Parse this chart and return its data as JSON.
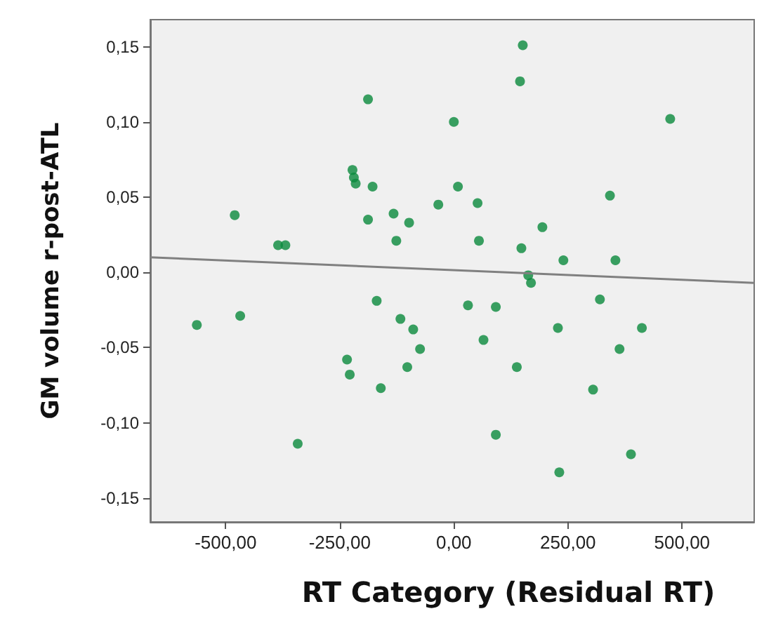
{
  "chart_data": {
    "type": "scatter",
    "xlabel": "RT Category (Residual RT)",
    "ylabel": "GM volume r-post-ATL",
    "xlim": [
      -665,
      658
    ],
    "ylim": [
      -0.166,
      0.168
    ],
    "xticks": [
      {
        "value": -500,
        "label": "-500,00"
      },
      {
        "value": -250,
        "label": "-250,00"
      },
      {
        "value": 0,
        "label": "0,00"
      },
      {
        "value": 250,
        "label": "250,00"
      },
      {
        "value": 500,
        "label": "500,00"
      }
    ],
    "yticks": [
      {
        "value": -0.15,
        "label": "-0,15"
      },
      {
        "value": -0.1,
        "label": "-0,10"
      },
      {
        "value": -0.05,
        "label": "-0,05"
      },
      {
        "value": 0,
        "label": "0,00"
      },
      {
        "value": 0.05,
        "label": "0,05"
      },
      {
        "value": 0.1,
        "label": "0,10"
      },
      {
        "value": 0.15,
        "label": "0,15"
      }
    ],
    "grid": false,
    "marker": "circle",
    "series": [
      {
        "color": "#0a8a3c",
        "x": [
          151,
          145,
          474,
          0,
          9,
          -34,
          52,
          342,
          194,
          55,
          148,
          240,
          354,
          163,
          -188,
          -222,
          -219,
          -215,
          -178,
          -480,
          -188,
          -132,
          -98,
          -126,
          -385,
          -369,
          -169,
          -563,
          -468,
          -117,
          -89,
          -74,
          -234,
          -228,
          -102,
          -160,
          -342,
          169,
          31,
          92,
          320,
          228,
          412,
          65,
          363,
          138,
          305,
          92,
          388,
          231
        ],
        "values": [
          0.151,
          0.127,
          0.102,
          0.1,
          0.057,
          0.045,
          0.046,
          0.051,
          0.03,
          0.021,
          0.016,
          0.008,
          0.008,
          -0.002,
          0.115,
          0.068,
          0.063,
          0.059,
          0.057,
          0.038,
          0.035,
          0.039,
          0.033,
          0.021,
          0.018,
          0.018,
          -0.019,
          -0.035,
          -0.029,
          -0.031,
          -0.038,
          -0.051,
          -0.058,
          -0.068,
          -0.063,
          -0.077,
          -0.114,
          -0.007,
          -0.022,
          -0.023,
          -0.018,
          -0.037,
          -0.037,
          -0.045,
          -0.051,
          -0.063,
          -0.078,
          -0.108,
          -0.121,
          -0.133
        ]
      },
      {
        "type": "line",
        "color": "#808080",
        "marker": "none",
        "x": [
          -665,
          658
        ],
        "values": [
          0.01,
          -0.007
        ]
      }
    ]
  }
}
